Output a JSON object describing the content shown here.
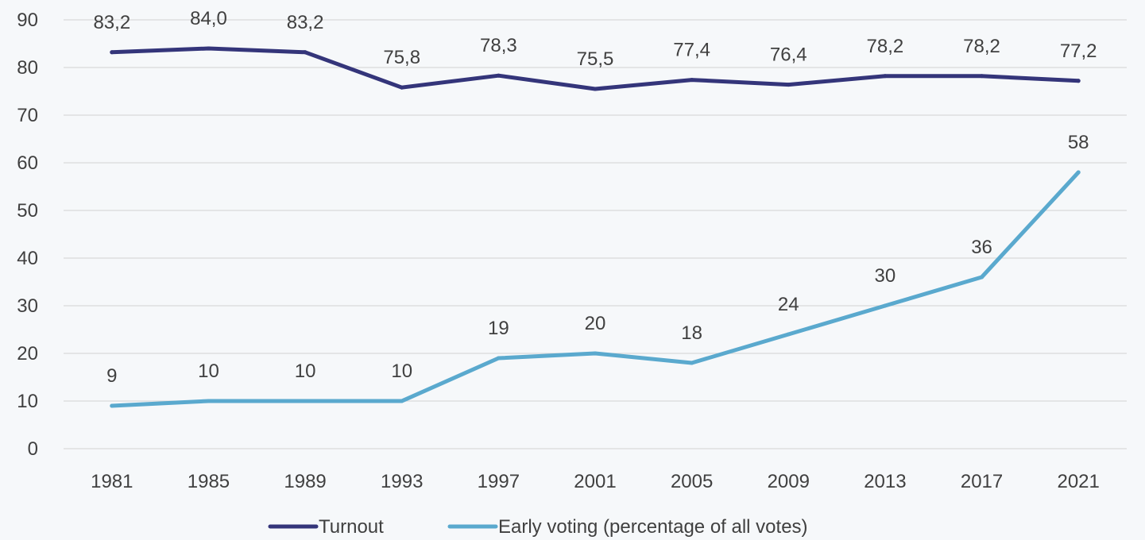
{
  "chart_data": {
    "type": "line",
    "title": "",
    "xlabel": "",
    "ylabel": "",
    "categories": [
      "1981",
      "1985",
      "1989",
      "1993",
      "1997",
      "2001",
      "2005",
      "2009",
      "2013",
      "2017",
      "2021"
    ],
    "ylim": [
      0,
      90
    ],
    "yticks": [
      "0",
      "10",
      "20",
      "30",
      "40",
      "50",
      "60",
      "70",
      "80",
      "90"
    ],
    "grid": true,
    "legend_position": "bottom",
    "series": [
      {
        "name": "Turnout",
        "color": "#34357a",
        "values": [
          83.2,
          84.0,
          83.2,
          75.8,
          78.3,
          75.5,
          77.4,
          76.4,
          78.2,
          78.2,
          77.2
        ],
        "labels": [
          "83,2",
          "84,0",
          "83,2",
          "75,8",
          "78,3",
          "75,5",
          "77,4",
          "76,4",
          "78,2",
          "78,2",
          "77,2"
        ]
      },
      {
        "name": "Early voting (percentage of all votes)",
        "color": "#5aa9ce",
        "values": [
          9,
          10,
          10,
          10,
          19,
          20,
          18,
          24,
          30,
          36,
          58
        ],
        "labels": [
          "9",
          "10",
          "10",
          "10",
          "19",
          "20",
          "18",
          "24",
          "30",
          "36",
          "58"
        ]
      }
    ]
  }
}
